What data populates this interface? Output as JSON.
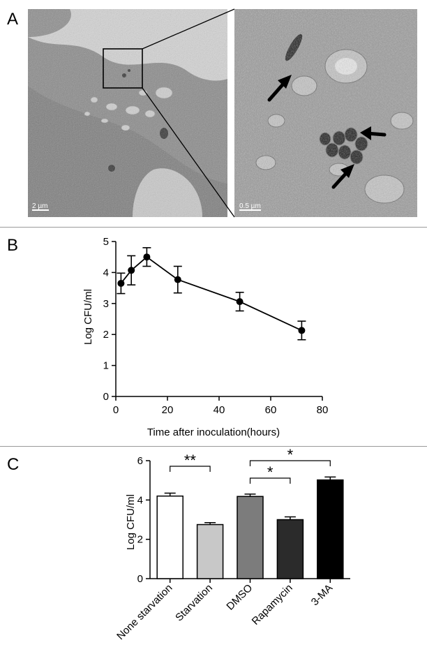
{
  "panels": {
    "a": "A",
    "b": "B",
    "c": "C"
  },
  "em": {
    "left_scale": "2 µm",
    "right_scale": "0.5 µm"
  },
  "chart_data": [
    {
      "type": "line",
      "xlabel": "Time after inoculation(hours)",
      "ylabel": "Log CFU/ml",
      "xlim": [
        0,
        80
      ],
      "ylim": [
        0,
        5
      ],
      "xticks": [
        "0",
        "20",
        "40",
        "60",
        "80"
      ],
      "yticks": [
        "0",
        "1",
        "2",
        "3",
        "4",
        "5"
      ],
      "x": [
        2,
        6,
        12,
        24,
        48,
        72
      ],
      "y": [
        3.65,
        4.07,
        4.5,
        3.77,
        3.06,
        2.13
      ],
      "err": [
        0.33,
        0.47,
        0.3,
        0.43,
        0.3,
        0.3
      ],
      "grid": false
    },
    {
      "type": "bar",
      "ylabel": "Log CFU/ml",
      "ylim": [
        0,
        6
      ],
      "yticks": [
        "0",
        "2",
        "4",
        "6"
      ],
      "categories": [
        "None starvation",
        "Starvation",
        "DMSO",
        "Rapamycin",
        "3-MA"
      ],
      "values": [
        4.2,
        2.75,
        4.18,
        3.0,
        5.02
      ],
      "err": [
        0.15,
        0.1,
        0.12,
        0.14,
        0.15
      ],
      "colors": [
        "#ffffff",
        "#c8c8c8",
        "#7c7c7c",
        "#2b2b2b",
        "#000000"
      ],
      "significance": [
        {
          "from": 0,
          "to": 1,
          "label": "**"
        },
        {
          "from": 2,
          "to": 3,
          "label": "*"
        },
        {
          "from": 2,
          "to": 4,
          "label": "*"
        }
      ]
    }
  ]
}
